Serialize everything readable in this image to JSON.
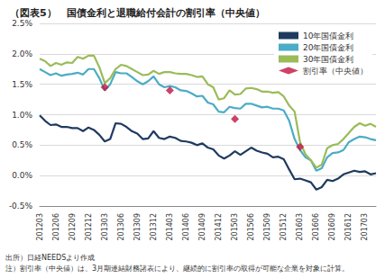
{
  "chart_data": {
    "type": "line",
    "title": "（図表5）　国債金利と退職給付会計の割引率（中央値）",
    "annotations": [
      "出所）日経NEEDSより作成",
      "注）割引率（中央値）は、3月期連結財務諸表により、継続的に割引率の取得が可能な企業を対象に計算。"
    ],
    "categories": [
      "201203",
      null,
      null,
      "201206",
      null,
      null,
      "201209",
      null,
      null,
      "201212",
      null,
      null,
      "201303",
      null,
      null,
      "201306",
      null,
      null,
      "201309",
      null,
      null,
      "201312",
      null,
      null,
      "201403",
      null,
      null,
      "201406",
      null,
      null,
      "201409",
      null,
      null,
      "201412",
      null,
      null,
      "201503",
      null,
      null,
      "201506",
      null,
      null,
      "201509",
      null,
      null,
      "201512",
      null,
      null,
      "201603",
      null,
      null,
      "201606",
      null,
      null,
      "201609",
      null,
      null,
      "201612",
      null,
      null,
      "201703",
      null,
      null
    ],
    "series": [
      {
        "name": "10年国債金利",
        "color": "#1F3A5F",
        "type": "line",
        "values": [
          0.99,
          0.9,
          0.83,
          0.84,
          0.8,
          0.8,
          0.78,
          0.78,
          0.73,
          0.79,
          0.75,
          0.67,
          0.56,
          0.6,
          0.86,
          0.85,
          0.8,
          0.73,
          0.69,
          0.6,
          0.61,
          0.73,
          0.62,
          0.6,
          0.64,
          0.62,
          0.57,
          0.56,
          0.54,
          0.5,
          0.53,
          0.46,
          0.43,
          0.33,
          0.28,
          0.33,
          0.4,
          0.34,
          0.4,
          0.46,
          0.41,
          0.38,
          0.36,
          0.3,
          0.31,
          0.27,
          0.1,
          -0.06,
          -0.05,
          -0.08,
          -0.11,
          -0.23,
          -0.19,
          -0.07,
          -0.09,
          -0.05,
          0.02,
          0.05,
          0.08,
          0.06,
          0.07,
          0.02,
          0.04
        ]
      },
      {
        "name": "20年国債金利",
        "color": "#4BACC6",
        "type": "line",
        "values": [
          1.75,
          1.7,
          1.65,
          1.68,
          1.64,
          1.66,
          1.67,
          1.69,
          1.66,
          1.75,
          1.75,
          1.6,
          1.4,
          1.5,
          1.7,
          1.68,
          1.68,
          1.62,
          1.55,
          1.5,
          1.55,
          1.63,
          1.5,
          1.45,
          1.47,
          1.45,
          1.4,
          1.39,
          1.35,
          1.3,
          1.31,
          1.2,
          1.17,
          1.05,
          1.04,
          1.13,
          1.11,
          1.1,
          1.18,
          1.18,
          1.15,
          1.12,
          1.13,
          1.1,
          1.1,
          1.07,
          0.9,
          0.6,
          0.42,
          0.3,
          0.25,
          0.08,
          0.12,
          0.3,
          0.37,
          0.38,
          0.42,
          0.55,
          0.6,
          0.64,
          0.63,
          0.6,
          0.58
        ]
      },
      {
        "name": "30年国債金利",
        "color": "#9BBB59",
        "type": "line",
        "values": [
          1.92,
          1.88,
          1.8,
          1.85,
          1.82,
          1.86,
          1.85,
          1.95,
          1.92,
          1.97,
          1.97,
          1.78,
          1.52,
          1.6,
          1.75,
          1.82,
          1.8,
          1.75,
          1.7,
          1.65,
          1.66,
          1.72,
          1.67,
          1.7,
          1.7,
          1.68,
          1.67,
          1.67,
          1.65,
          1.62,
          1.63,
          1.5,
          1.45,
          1.25,
          1.27,
          1.4,
          1.33,
          1.34,
          1.43,
          1.44,
          1.42,
          1.38,
          1.38,
          1.36,
          1.37,
          1.3,
          1.15,
          1.05,
          0.55,
          0.35,
          0.25,
          0.13,
          0.18,
          0.45,
          0.5,
          0.52,
          0.6,
          0.7,
          0.8,
          0.86,
          0.82,
          0.85,
          0.8
        ]
      },
      {
        "name": "割引率（中央値）",
        "color": "#C0143C",
        "type": "scatter",
        "marker": "diamond",
        "values": [
          null,
          null,
          null,
          null,
          null,
          null,
          null,
          null,
          null,
          null,
          null,
          null,
          1.45,
          null,
          null,
          null,
          null,
          null,
          null,
          null,
          null,
          null,
          null,
          null,
          1.4,
          null,
          null,
          null,
          null,
          null,
          null,
          null,
          null,
          null,
          null,
          null,
          0.93,
          null,
          null,
          null,
          null,
          null,
          null,
          null,
          null,
          null,
          null,
          null,
          0.47,
          null,
          null,
          null,
          null,
          null,
          null,
          null,
          null,
          null,
          null,
          null,
          null,
          null,
          null
        ]
      }
    ],
    "ylim": [
      -0.5,
      2.5
    ],
    "yticks": [
      {
        "value": -0.5,
        "label": "-0.5%"
      },
      {
        "value": 0,
        "label": "0.0%"
      },
      {
        "value": 0.5,
        "label": "0.5%"
      },
      {
        "value": 1.0,
        "label": "1.0%"
      },
      {
        "value": 1.5,
        "label": "1.5%"
      },
      {
        "value": 2.0,
        "label": "2.0%"
      },
      {
        "value": 2.5,
        "label": "2.5%"
      }
    ],
    "grid": true,
    "legend": "upper right"
  }
}
